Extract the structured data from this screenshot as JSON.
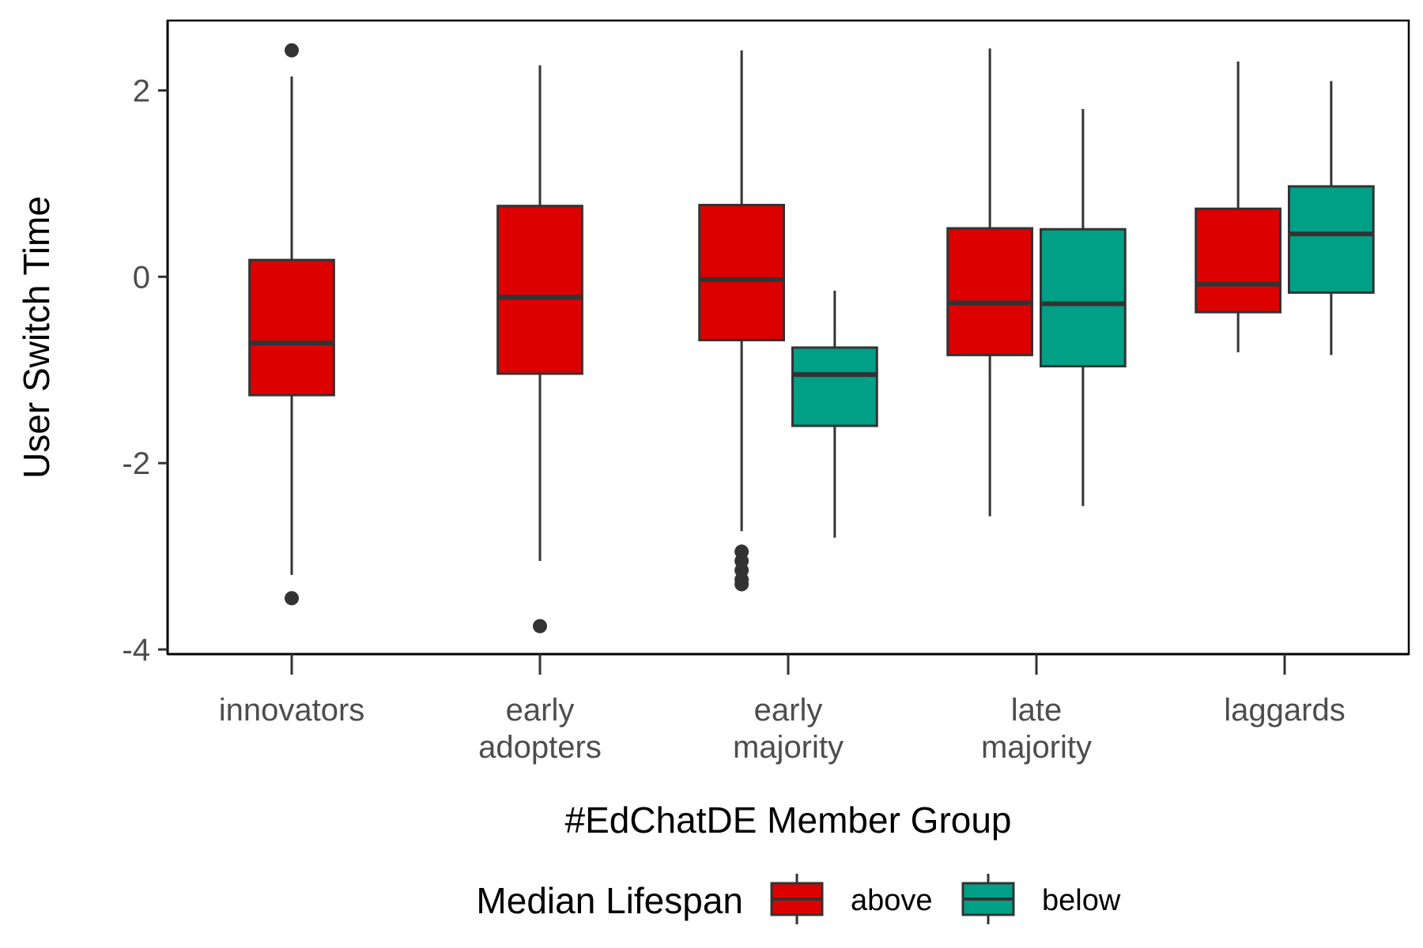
{
  "chart_data": {
    "type": "boxplot",
    "title": "",
    "xlabel": "#EdChatDE Member Group",
    "ylabel": "User Switch Time",
    "ylim": [
      -4.05,
      2.75
    ],
    "yticks": [
      -4,
      -2,
      0,
      2
    ],
    "ytick_labels": [
      "-4",
      "-2",
      "0",
      "2"
    ],
    "categories": [
      [
        "innovators"
      ],
      [
        "early",
        "adopters"
      ],
      [
        "early",
        "majority"
      ],
      [
        "late",
        "majority"
      ],
      [
        "laggards"
      ]
    ],
    "legend": {
      "title": "Median Lifespan",
      "position": "bottom",
      "entries": [
        {
          "label": "above",
          "color": "#dd0000"
        },
        {
          "label": "below",
          "color": "#00a087"
        }
      ]
    },
    "series": [
      {
        "name": "above",
        "color": "#dd0000",
        "boxes": [
          {
            "category": 0,
            "whisker_low": -3.2,
            "q1": -1.27,
            "median": -0.71,
            "q3": 0.18,
            "whisker_high": 2.15,
            "outliers": [
              2.43,
              -3.45
            ]
          },
          {
            "category": 1,
            "whisker_low": -3.05,
            "q1": -1.04,
            "median": -0.22,
            "q3": 0.76,
            "whisker_high": 2.27,
            "outliers": [
              -3.75
            ]
          },
          {
            "category": 2,
            "whisker_low": -2.73,
            "q1": -0.68,
            "median": -0.03,
            "q3": 0.77,
            "whisker_high": 2.43,
            "outliers": [
              -2.95,
              -3.05,
              -3.15,
              -3.25,
              -3.3
            ]
          },
          {
            "category": 3,
            "whisker_low": -2.57,
            "q1": -0.84,
            "median": -0.28,
            "q3": 0.52,
            "whisker_high": 2.45,
            "outliers": []
          },
          {
            "category": 4,
            "whisker_low": -0.81,
            "q1": -0.38,
            "median": -0.08,
            "q3": 0.73,
            "whisker_high": 2.31,
            "outliers": []
          }
        ]
      },
      {
        "name": "below",
        "color": "#00a087",
        "boxes": [
          {
            "category": 2,
            "whisker_low": -2.8,
            "q1": -1.6,
            "median": -1.05,
            "q3": -0.76,
            "whisker_high": -0.15,
            "outliers": []
          },
          {
            "category": 3,
            "whisker_low": -2.46,
            "q1": -0.96,
            "median": -0.29,
            "q3": 0.51,
            "whisker_high": 1.8,
            "outliers": []
          },
          {
            "category": 4,
            "whisker_low": -0.84,
            "q1": -0.17,
            "median": 0.46,
            "q3": 0.97,
            "whisker_high": 2.1,
            "outliers": []
          }
        ]
      }
    ]
  }
}
